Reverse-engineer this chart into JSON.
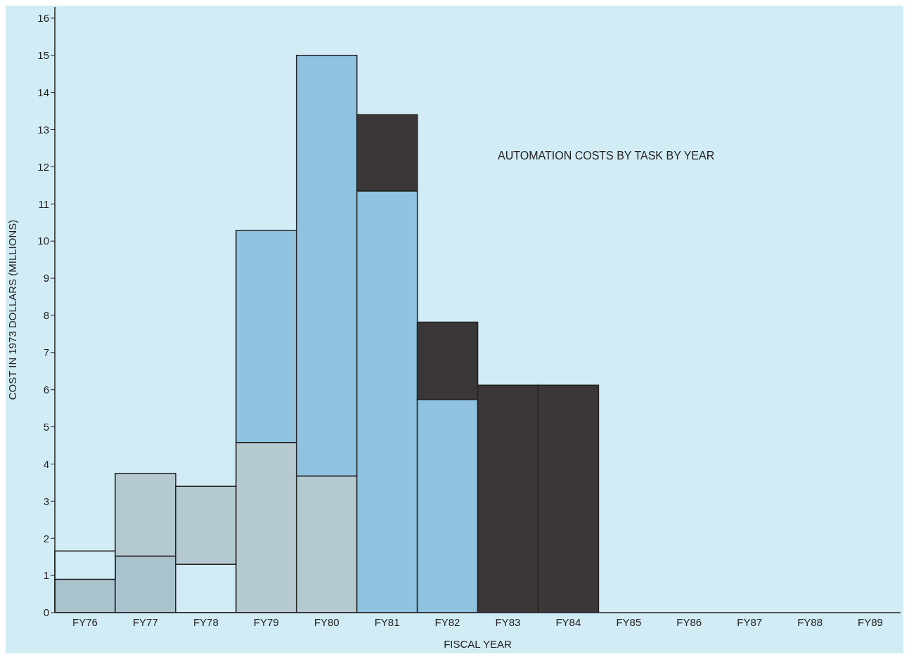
{
  "chart_data": {
    "type": "bar",
    "title": "AUTOMATION COSTS BY TASK BY YEAR",
    "xlabel": "FISCAL YEAR",
    "ylabel": "COST IN 1973 DOLLARS (MILLIONS)",
    "categories": [
      "FY76",
      "FY77",
      "FY78",
      "FY79",
      "FY80",
      "FY81",
      "FY82",
      "FY83",
      "FY84",
      "FY85",
      "FY86",
      "FY87",
      "FY88",
      "FY89"
    ],
    "stacked": true,
    "series": [
      {
        "color": "#a9c3ce",
        "values": [
          0.9,
          1.52,
          null,
          null,
          null,
          null,
          null,
          null,
          null,
          null,
          null,
          null,
          null,
          null
        ]
      },
      {
        "color": "#d2ecf5",
        "values": [
          0.76,
          null,
          1.3,
          null,
          null,
          null,
          null,
          null,
          null,
          null,
          null,
          null,
          null,
          null
        ]
      },
      {
        "color": "#b5c9d0",
        "values": [
          null,
          2.23,
          2.1,
          4.58,
          3.68,
          null,
          null,
          null,
          null,
          null,
          null,
          null,
          null,
          null
        ]
      },
      {
        "color": "#8fc3e0",
        "values": [
          null,
          null,
          null,
          5.7,
          11.32,
          11.35,
          5.74,
          null,
          null,
          null,
          null,
          null,
          null,
          null
        ]
      },
      {
        "color": "#3b3638",
        "values": [
          null,
          null,
          null,
          null,
          null,
          2.05,
          2.08,
          6.12,
          6.12,
          null,
          null,
          null,
          null,
          null
        ]
      }
    ],
    "ylim": [
      0,
      16.3
    ],
    "yticks": [
      0,
      1,
      2,
      3,
      4,
      5,
      6,
      7,
      8,
      9,
      10,
      11,
      12,
      13,
      14,
      15,
      16
    ]
  }
}
